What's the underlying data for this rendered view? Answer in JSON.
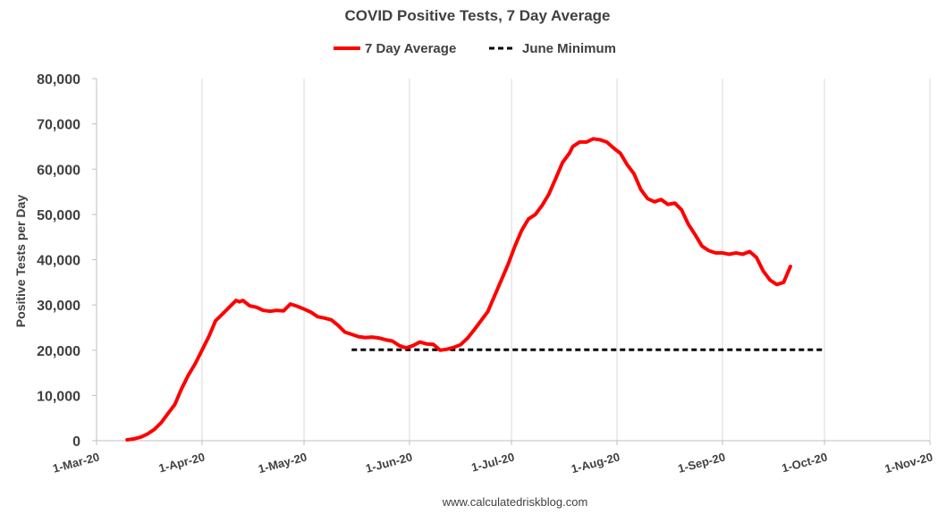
{
  "chart_data": {
    "type": "line",
    "title": "COVID Positive Tests, 7 Day Average",
    "xlabel": "",
    "ylabel": "Positive Tests per Day",
    "ylim": [
      0,
      80000
    ],
    "yticks": [
      0,
      10000,
      20000,
      30000,
      40000,
      50000,
      60000,
      70000,
      80000
    ],
    "ytick_labels": [
      "0",
      "10,000",
      "20,000",
      "30,000",
      "40,000",
      "50,000",
      "60,000",
      "70,000",
      "80,000"
    ],
    "xlim": [
      "2020-03-01",
      "2020-11-01"
    ],
    "xticks": [
      "2020-03-01",
      "2020-04-01",
      "2020-05-01",
      "2020-06-01",
      "2020-07-01",
      "2020-08-01",
      "2020-09-01",
      "2020-10-01",
      "2020-11-01"
    ],
    "xtick_labels": [
      "1-Mar-20",
      "1-Apr-20",
      "1-May-20",
      "1-Jun-20",
      "1-Jul-20",
      "1-Aug-20",
      "1-Sep-20",
      "1-Oct-20",
      "1-Nov-20"
    ],
    "grid": "vertical",
    "legend": "top",
    "series": [
      {
        "name": "7 Day Average",
        "color": "#ff0000",
        "style": "solid",
        "points": [
          [
            "2020-03-10",
            200
          ],
          [
            "2020-03-12",
            400
          ],
          [
            "2020-03-14",
            800
          ],
          [
            "2020-03-16",
            1500
          ],
          [
            "2020-03-18",
            2500
          ],
          [
            "2020-03-20",
            4000
          ],
          [
            "2020-03-22",
            6000
          ],
          [
            "2020-03-24",
            8000
          ],
          [
            "2020-03-26",
            11500
          ],
          [
            "2020-03-28",
            14500
          ],
          [
            "2020-03-30",
            17000
          ],
          [
            "2020-04-01",
            20000
          ],
          [
            "2020-04-03",
            23000
          ],
          [
            "2020-04-05",
            26500
          ],
          [
            "2020-04-07",
            28000
          ],
          [
            "2020-04-09",
            29500
          ],
          [
            "2020-04-11",
            31000
          ],
          [
            "2020-04-12",
            30700
          ],
          [
            "2020-04-13",
            31000
          ],
          [
            "2020-04-15",
            29800
          ],
          [
            "2020-04-17",
            29500
          ],
          [
            "2020-04-19",
            28800
          ],
          [
            "2020-04-21",
            28600
          ],
          [
            "2020-04-23",
            28800
          ],
          [
            "2020-04-25",
            28700
          ],
          [
            "2020-04-27",
            30200
          ],
          [
            "2020-04-29",
            29700
          ],
          [
            "2020-05-01",
            29100
          ],
          [
            "2020-05-03",
            28400
          ],
          [
            "2020-05-05",
            27400
          ],
          [
            "2020-05-07",
            27100
          ],
          [
            "2020-05-09",
            26700
          ],
          [
            "2020-05-11",
            25500
          ],
          [
            "2020-05-13",
            24000
          ],
          [
            "2020-05-15",
            23500
          ],
          [
            "2020-05-17",
            23000
          ],
          [
            "2020-05-19",
            22800
          ],
          [
            "2020-05-21",
            22900
          ],
          [
            "2020-05-23",
            22700
          ],
          [
            "2020-05-25",
            22300
          ],
          [
            "2020-05-27",
            22000
          ],
          [
            "2020-05-29",
            21000
          ],
          [
            "2020-05-31",
            20500
          ],
          [
            "2020-06-02",
            21000
          ],
          [
            "2020-06-04",
            21800
          ],
          [
            "2020-06-06",
            21400
          ],
          [
            "2020-06-08",
            21300
          ],
          [
            "2020-06-10",
            20000
          ],
          [
            "2020-06-12",
            20200
          ],
          [
            "2020-06-14",
            20600
          ],
          [
            "2020-06-16",
            21200
          ],
          [
            "2020-06-18",
            22600
          ],
          [
            "2020-06-20",
            24500
          ],
          [
            "2020-06-22",
            26500
          ],
          [
            "2020-06-24",
            28500
          ],
          [
            "2020-06-26",
            32000
          ],
          [
            "2020-06-28",
            35500
          ],
          [
            "2020-06-30",
            39000
          ],
          [
            "2020-07-02",
            43000
          ],
          [
            "2020-07-04",
            46500
          ],
          [
            "2020-07-06",
            49000
          ],
          [
            "2020-07-08",
            50000
          ],
          [
            "2020-07-10",
            52000
          ],
          [
            "2020-07-12",
            54500
          ],
          [
            "2020-07-14",
            58000
          ],
          [
            "2020-07-16",
            61500
          ],
          [
            "2020-07-18",
            63500
          ],
          [
            "2020-07-19",
            65000
          ],
          [
            "2020-07-21",
            66000
          ],
          [
            "2020-07-23",
            66000
          ],
          [
            "2020-07-25",
            66700
          ],
          [
            "2020-07-27",
            66500
          ],
          [
            "2020-07-29",
            66000
          ],
          [
            "2020-07-31",
            64700
          ],
          [
            "2020-08-02",
            63500
          ],
          [
            "2020-08-04",
            61000
          ],
          [
            "2020-08-06",
            59000
          ],
          [
            "2020-08-08",
            55500
          ],
          [
            "2020-08-10",
            53500
          ],
          [
            "2020-08-12",
            52800
          ],
          [
            "2020-08-14",
            53300
          ],
          [
            "2020-08-16",
            52200
          ],
          [
            "2020-08-18",
            52500
          ],
          [
            "2020-08-20",
            51000
          ],
          [
            "2020-08-22",
            47800
          ],
          [
            "2020-08-24",
            45500
          ],
          [
            "2020-08-26",
            43000
          ],
          [
            "2020-08-28",
            42000
          ],
          [
            "2020-08-30",
            41500
          ],
          [
            "2020-09-01",
            41500
          ],
          [
            "2020-09-03",
            41200
          ],
          [
            "2020-09-05",
            41500
          ],
          [
            "2020-09-07",
            41200
          ],
          [
            "2020-09-09",
            41800
          ],
          [
            "2020-09-11",
            40500
          ],
          [
            "2020-09-13",
            37500
          ],
          [
            "2020-09-15",
            35500
          ],
          [
            "2020-09-17",
            34500
          ],
          [
            "2020-09-19",
            35000
          ],
          [
            "2020-09-21",
            38500
          ]
        ]
      },
      {
        "name": "June Minimum",
        "color": "#000000",
        "style": "dashed",
        "points": [
          [
            "2020-05-15",
            20100
          ],
          [
            "2020-10-01",
            20100
          ]
        ]
      }
    ]
  },
  "credit": "www.calculatedriskblog.com"
}
